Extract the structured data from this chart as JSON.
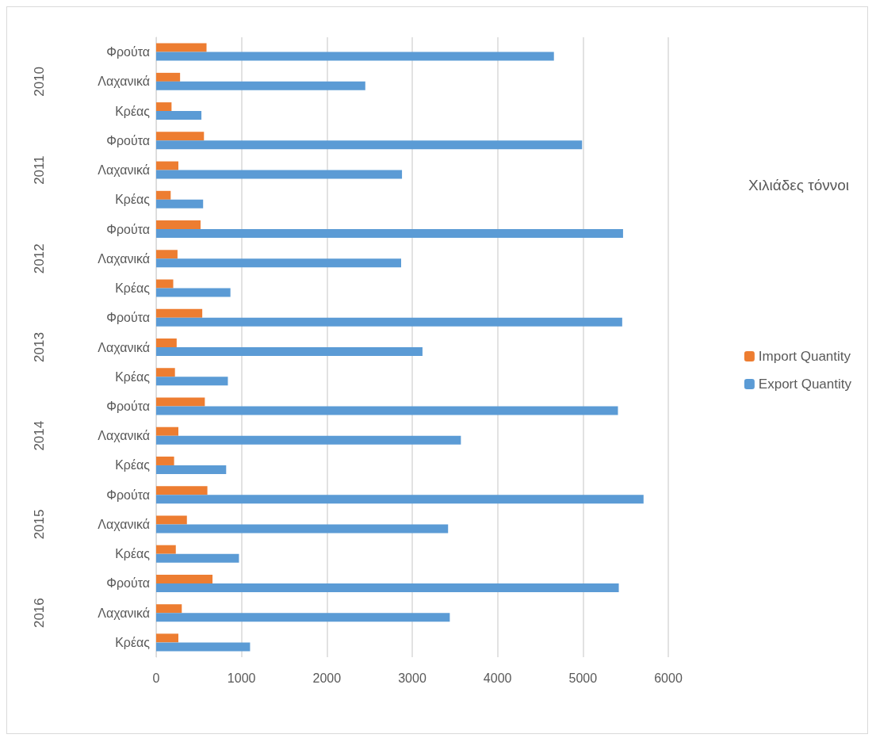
{
  "chart_data": {
    "type": "bar",
    "orientation": "horizontal",
    "legend_title": "Χιλιάδες τόννοι",
    "categories": [
      "Φρούτα",
      "Λαχανικά",
      "Κρέας",
      "Φρούτα",
      "Λαχανικά",
      "Κρέας",
      "Φρούτα",
      "Λαχανικά",
      "Κρέας",
      "Φρούτα",
      "Λαχανικά",
      "Κρέας",
      "Φρούτα",
      "Λαχανικά",
      "Κρέας",
      "Φρούτα",
      "Λαχανικά",
      "Κρέας",
      "Φρούτα",
      "Λαχανικά",
      "Κρέας"
    ],
    "annotations": [
      "2010",
      "2011",
      "2012",
      "2013",
      "2014",
      "2015",
      "2016"
    ],
    "series": [
      {
        "name": "Import Quantity",
        "color": "#ed7d31",
        "values": [
          590,
          280,
          180,
          560,
          260,
          170,
          520,
          250,
          200,
          540,
          240,
          220,
          570,
          260,
          210,
          600,
          360,
          230,
          660,
          300,
          260
        ]
      },
      {
        "name": "Export Quantity",
        "color": "#5b9bd5",
        "values": [
          4660,
          2450,
          530,
          4990,
          2880,
          550,
          5470,
          2870,
          870,
          5460,
          3120,
          840,
          5410,
          3570,
          820,
          5710,
          3420,
          970,
          5420,
          3440,
          1100
        ]
      }
    ],
    "xlim": [
      0,
      6000
    ],
    "xticks": [
      0,
      1000,
      2000,
      3000,
      4000,
      5000,
      6000
    ],
    "grid": "x",
    "legend": "right"
  }
}
